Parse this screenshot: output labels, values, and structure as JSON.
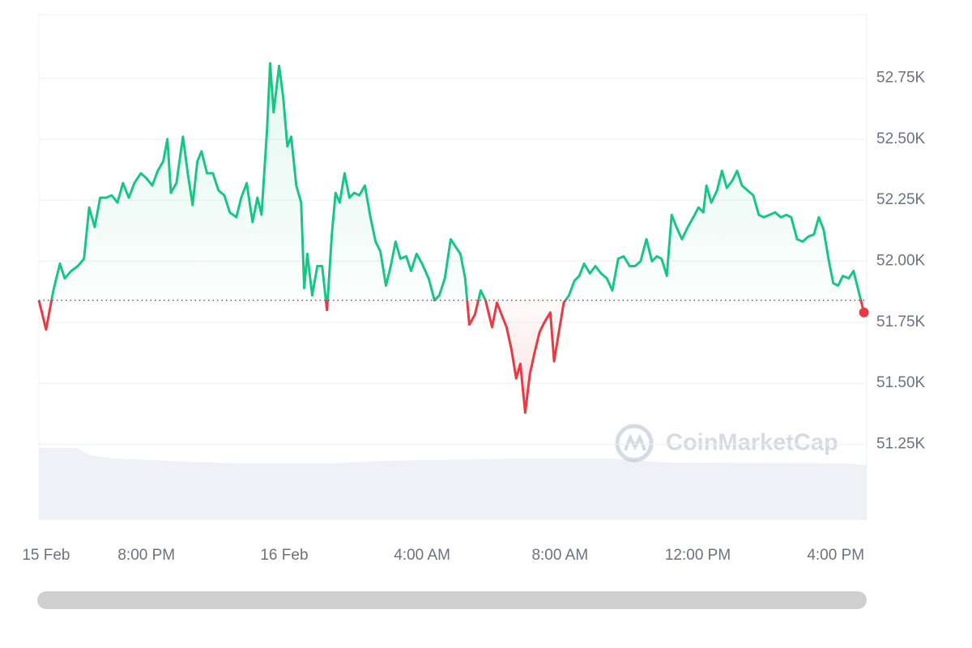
{
  "chart_data": {
    "type": "line",
    "watermark": "CoinMarketCap",
    "x": [
      16.88,
      17.09,
      17.3,
      17.49,
      17.63,
      17.82,
      18.01,
      18.19,
      18.34,
      18.5,
      18.66,
      18.83,
      18.99,
      19.16,
      19.32,
      19.49,
      19.65,
      19.84,
      20.0,
      20.17,
      20.33,
      20.49,
      20.61,
      20.71,
      20.87,
      21.06,
      21.2,
      21.34,
      21.48,
      21.6,
      21.76,
      21.93,
      22.09,
      22.26,
      22.42,
      22.61,
      22.75,
      22.91,
      23.08,
      23.22,
      23.34,
      23.5,
      23.59,
      23.69,
      23.85,
      23.97,
      24.09,
      24.2,
      24.35,
      24.49,
      24.58,
      24.67,
      24.81,
      24.96,
      25.1,
      25.24,
      25.38,
      25.49,
      25.61,
      25.75,
      25.89,
      26.03,
      26.18,
      26.34,
      26.5,
      26.65,
      26.79,
      26.95,
      27.09,
      27.23,
      27.37,
      27.54,
      27.68,
      27.84,
      28.0,
      28.19,
      28.36,
      28.5,
      28.66,
      28.83,
      28.97,
      29.11,
      29.25,
      29.37,
      29.53,
      29.7,
      29.84,
      30.03,
      30.17,
      30.31,
      30.45,
      30.59,
      30.73,
      30.85,
      30.99,
      31.13,
      31.27,
      31.41,
      31.55,
      31.72,
      31.83,
      31.97,
      32.11,
      32.26,
      32.42,
      32.56,
      32.7,
      32.87,
      33.03,
      33.19,
      33.36,
      33.52,
      33.69,
      33.85,
      34.02,
      34.18,
      34.34,
      34.51,
      34.67,
      34.81,
      34.95,
      35.1,
      35.24,
      35.38,
      35.54,
      35.71,
      35.87,
      36.02,
      36.16,
      36.25,
      36.39,
      36.56,
      36.7,
      36.84,
      37.0,
      37.14,
      37.28,
      37.44,
      37.61,
      37.77,
      37.91,
      38.08,
      38.24,
      38.41,
      38.57,
      38.71,
      38.88,
      39.04,
      39.2,
      39.37,
      39.51,
      39.65,
      39.79,
      39.93,
      40.07,
      40.21,
      40.38,
      40.52,
      40.66,
      40.82
    ],
    "values": [
      51840,
      51720,
      51880,
      51990,
      51930,
      51960,
      51980,
      52010,
      52220,
      52140,
      52260,
      52260,
      52270,
      52240,
      52320,
      52260,
      52320,
      52360,
      52340,
      52310,
      52370,
      52410,
      52500,
      52280,
      52320,
      52510,
      52360,
      52230,
      52410,
      52450,
      52360,
      52360,
      52290,
      52270,
      52200,
      52180,
      52260,
      52320,
      52160,
      52260,
      52190,
      52540,
      52810,
      52610,
      52800,
      52670,
      52470,
      52510,
      52310,
      52240,
      51890,
      52030,
      51860,
      51980,
      51980,
      51800,
      52110,
      52280,
      52240,
      52360,
      52260,
      52280,
      52270,
      52310,
      52180,
      52080,
      52040,
      51900,
      51980,
      52080,
      52010,
      52020,
      51960,
      52030,
      51990,
      51930,
      51840,
      51860,
      51930,
      52090,
      52060,
      52030,
      51930,
      51740,
      51780,
      51880,
      51840,
      51730,
      51830,
      51780,
      51730,
      51640,
      51520,
      51580,
      51380,
      51540,
      51630,
      51710,
      51750,
      51790,
      51590,
      51710,
      51830,
      51860,
      51920,
      51940,
      51990,
      51950,
      51980,
      51950,
      51930,
      51880,
      52010,
      52020,
      51980,
      51980,
      52000,
      52090,
      52000,
      52020,
      52010,
      51940,
      52190,
      52140,
      52090,
      52140,
      52180,
      52220,
      52200,
      52310,
      52240,
      52290,
      52370,
      52300,
      52330,
      52370,
      52310,
      52290,
      52270,
      52190,
      52180,
      52190,
      52200,
      52180,
      52190,
      52180,
      52090,
      52080,
      52100,
      52110,
      52180,
      52130,
      52010,
      51910,
      51900,
      51940,
      51930,
      51960,
      51880,
      51790
    ],
    "color_up": "#16c784",
    "color_down": "#ea3943",
    "xlim": [
      16.88,
      40.9
    ],
    "xticks": [
      {
        "value": 17.09,
        "label": "15 Feb"
      },
      {
        "value": 20,
        "label": "8:00 PM"
      },
      {
        "value": 24,
        "label": "16 Feb"
      },
      {
        "value": 28,
        "label": "4:00 AM"
      },
      {
        "value": 32,
        "label": "8:00 AM"
      },
      {
        "value": 36,
        "label": "12:00 PM"
      },
      {
        "value": 40,
        "label": "4:00 PM"
      }
    ],
    "ylim": [
      50940,
      53010
    ],
    "yticks": [
      {
        "value": 51250,
        "label": "51.25K"
      },
      {
        "value": 51500,
        "label": "51.50K"
      },
      {
        "value": 51750,
        "label": "51.75K"
      },
      {
        "value": 52000,
        "label": "52.00K"
      },
      {
        "value": 52250,
        "label": "52.25K"
      },
      {
        "value": 52500,
        "label": "52.50K"
      },
      {
        "value": 52750,
        "label": "52.75K"
      }
    ],
    "grid": true
  }
}
